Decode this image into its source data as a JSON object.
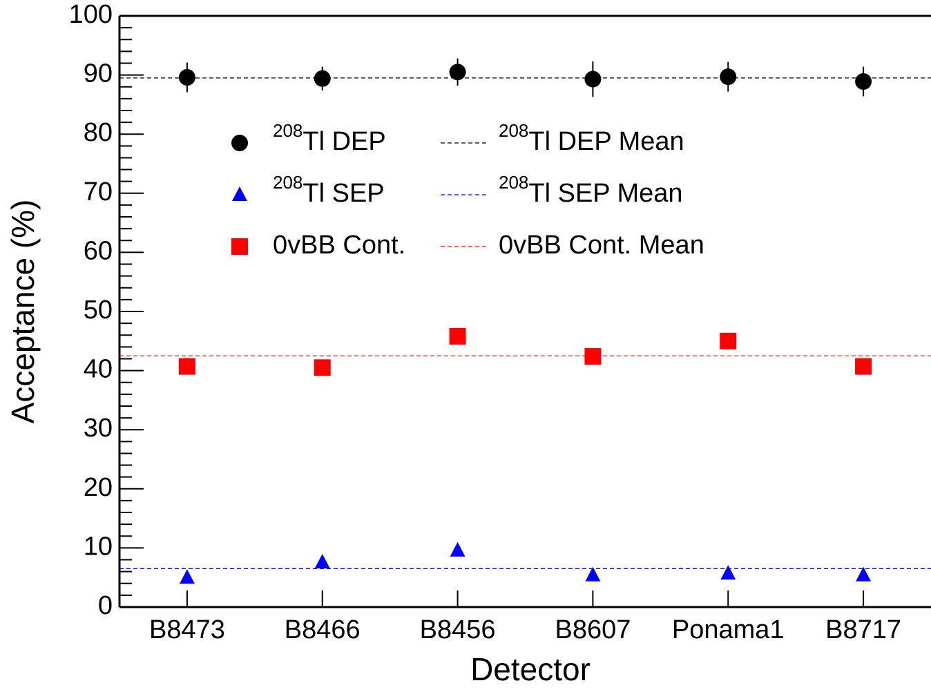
{
  "chart_data": {
    "type": "scatter",
    "x_label": "Detector",
    "y_label": "Acceptance (%)",
    "categories": [
      "B8473",
      "B8466",
      "B8456",
      "B8607",
      "Ponama1",
      "B8717"
    ],
    "ylim": [
      0,
      100
    ],
    "yticks": [
      0,
      10,
      20,
      30,
      40,
      50,
      60,
      70,
      80,
      90,
      100
    ],
    "yminorticks": [
      2,
      4,
      6,
      8,
      12,
      14,
      16,
      18,
      22,
      24,
      26,
      28,
      32,
      34,
      36,
      38,
      42,
      44,
      46,
      48,
      52,
      54,
      56,
      58,
      62,
      64,
      66,
      68,
      72,
      74,
      76,
      78,
      82,
      84,
      86,
      88,
      92,
      94,
      96,
      98
    ],
    "series": [
      {
        "superscript": "208",
        "name": "Tl DEP",
        "marker": "circle",
        "color": "#000000",
        "values": [
          89.6,
          89.4,
          90.5,
          89.3,
          89.7,
          88.9
        ],
        "errors": [
          2.5,
          2.0,
          2.3,
          3.0,
          2.5,
          2.5
        ],
        "mean": 89.5,
        "mean_superscript": "208",
        "mean_name": "Tl DEP Mean"
      },
      {
        "superscript": "208",
        "name": "Tl SEP",
        "marker": "triangle",
        "color": "#0000ff",
        "values": [
          5.0,
          7.6,
          9.6,
          5.4,
          5.7,
          5.4
        ],
        "mean": 6.5,
        "mean_superscript": "208",
        "mean_name": "Tl SEP Mean"
      },
      {
        "name": "0vBB Cont.",
        "marker": "square",
        "color": "#ff0000",
        "values": [
          40.7,
          40.5,
          45.8,
          42.4,
          45.0,
          40.7
        ],
        "mean": 42.5,
        "mean_name": "0vBB Cont. Mean"
      }
    ]
  }
}
